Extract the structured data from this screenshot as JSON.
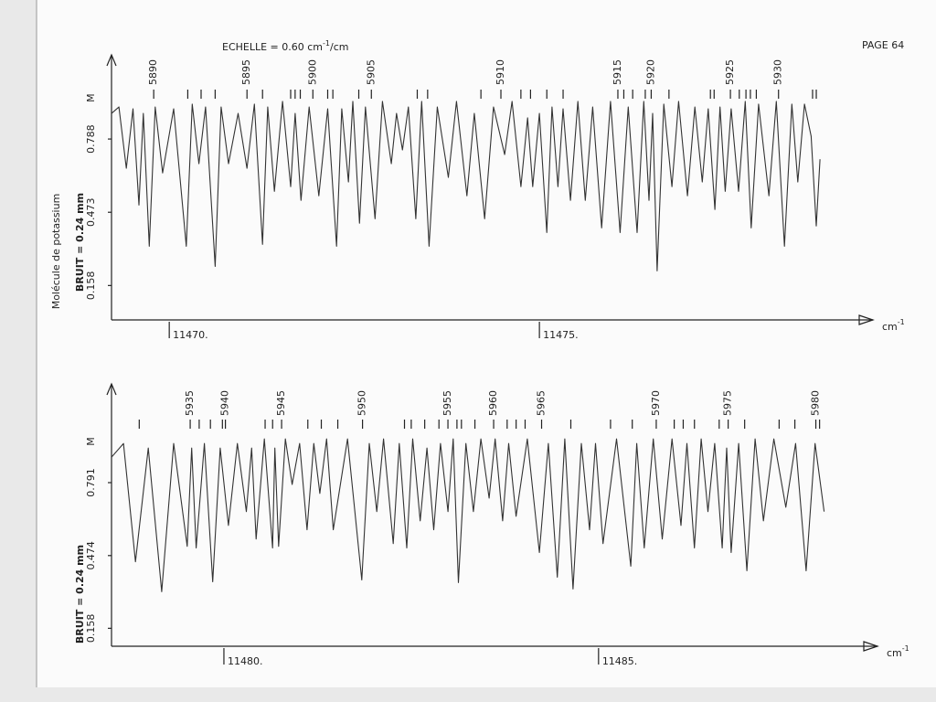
{
  "header": {
    "scale": "ECHELLE = 0.60 cm",
    "scale_sup": "-1",
    "scale_unit": "/cm",
    "page": "PAGE 64"
  },
  "side_label": "Molécule de potassium",
  "chart_data": [
    {
      "type": "line",
      "color": "#333333",
      "x": [
        11469.22,
        11469.32,
        11469.42,
        11469.51,
        11469.59,
        11469.65,
        11469.73,
        11469.81,
        11469.91,
        11470.06,
        11470.23,
        11470.31,
        11470.4,
        11470.49,
        11470.62,
        11470.7,
        11470.8,
        11470.93,
        11471.05,
        11471.15,
        11471.26,
        11471.33,
        11471.42,
        11471.53,
        11471.64,
        11471.7,
        11471.78,
        11471.89,
        11472.02,
        11472.14,
        11472.26,
        11472.33,
        11472.42,
        11472.48,
        11472.57,
        11472.65,
        11472.78,
        11472.88,
        11473.0,
        11473.07,
        11473.15,
        11473.23,
        11473.33,
        11473.41,
        11473.51,
        11473.62,
        11473.77,
        11473.88,
        11474.02,
        11474.12,
        11474.26,
        11474.38,
        11474.53,
        11474.63,
        11474.75,
        11474.84,
        11474.91,
        11475.0,
        11475.1,
        11475.17,
        11475.25,
        11475.32,
        11475.42,
        11475.52,
        11475.62,
        11475.72,
        11475.84,
        11475.96,
        11476.09,
        11476.2,
        11476.32,
        11476.41,
        11476.48,
        11476.53,
        11476.59,
        11476.68,
        11476.79,
        11476.88,
        11477.0,
        11477.1,
        11477.2,
        11477.28,
        11477.37,
        11477.44,
        11477.51,
        11477.59,
        11477.69,
        11477.78,
        11477.86,
        11477.96,
        11478.1,
        11478.2,
        11478.31,
        11478.41,
        11478.49,
        11478.58,
        11478.67,
        11478.74,
        11478.79
      ],
      "values": [
        0.898,
        0.926,
        0.662,
        0.918,
        0.504,
        0.898,
        0.327,
        0.926,
        0.642,
        0.918,
        0.327,
        0.938,
        0.682,
        0.926,
        0.24,
        0.926,
        0.682,
        0.898,
        0.662,
        0.938,
        0.335,
        0.926,
        0.563,
        0.95,
        0.583,
        0.898,
        0.524,
        0.926,
        0.544,
        0.918,
        0.327,
        0.918,
        0.603,
        0.95,
        0.426,
        0.926,
        0.445,
        0.95,
        0.682,
        0.898,
        0.741,
        0.926,
        0.445,
        0.95,
        0.327,
        0.926,
        0.623,
        0.95,
        0.544,
        0.898,
        0.445,
        0.926,
        0.721,
        0.95,
        0.583,
        0.879,
        0.583,
        0.898,
        0.386,
        0.926,
        0.583,
        0.918,
        0.524,
        0.95,
        0.524,
        0.926,
        0.406,
        0.95,
        0.386,
        0.926,
        0.386,
        0.95,
        0.524,
        0.898,
        0.221,
        0.938,
        0.583,
        0.95,
        0.544,
        0.926,
        0.603,
        0.918,
        0.485,
        0.926,
        0.563,
        0.918,
        0.563,
        0.95,
        0.406,
        0.938,
        0.544,
        0.95,
        0.327,
        0.938,
        0.603,
        0.938,
        0.8,
        0.414,
        0.701
      ],
      "xlim": [
        11469.22,
        11479.32
      ],
      "ylim": [
        0.01,
        1.15
      ],
      "xticks": [
        {
          "value": 11470,
          "label": "11470."
        },
        {
          "value": 11475,
          "label": "11475."
        }
      ],
      "yticks": [
        0.158,
        0.473,
        0.788
      ],
      "ylabel": "BRUIT = 0.24 mm",
      "ysymbol": "M",
      "xlabel": "cm",
      "xlabel_sup": "-1",
      "line_labels": [
        {
          "x": 11469.79,
          "text": "5890"
        },
        {
          "x": 11471.05,
          "text": "5895"
        },
        {
          "x": 11471.94,
          "text": "5900"
        },
        {
          "x": 11472.73,
          "text": "5905"
        },
        {
          "x": 11474.48,
          "text": "5910"
        },
        {
          "x": 11476.06,
          "text": "5915"
        },
        {
          "x": 11476.51,
          "text": "5920"
        },
        {
          "x": 11477.58,
          "text": "5925"
        },
        {
          "x": 11478.23,
          "text": "5930"
        }
      ],
      "line_marks": [
        11470.25,
        11470.43,
        11470.62,
        11471.26,
        11471.64,
        11471.7,
        11471.77,
        11472.14,
        11472.21,
        11472.56,
        11473.35,
        11473.49,
        11474.21,
        11474.75,
        11474.88,
        11475.1,
        11475.32,
        11476.14,
        11476.26,
        11476.43,
        11476.75,
        11477.31,
        11477.36,
        11477.7,
        11477.79,
        11477.85,
        11477.93,
        11478.69,
        11478.74
      ]
    },
    {
      "type": "line",
      "color": "#333333",
      "x": [
        11478.5,
        11478.66,
        11478.82,
        11478.99,
        11479.17,
        11479.33,
        11479.51,
        11479.57,
        11479.63,
        11479.74,
        11479.85,
        11479.95,
        11480.06,
        11480.18,
        11480.3,
        11480.37,
        11480.43,
        11480.54,
        11480.65,
        11480.68,
        11480.73,
        11480.82,
        11480.91,
        11481.01,
        11481.11,
        11481.2,
        11481.28,
        11481.37,
        11481.46,
        11481.65,
        11481.84,
        11481.94,
        11482.04,
        11482.13,
        11482.26,
        11482.34,
        11482.44,
        11482.52,
        11482.62,
        11482.71,
        11482.8,
        11482.89,
        11482.99,
        11483.06,
        11483.13,
        11483.23,
        11483.33,
        11483.43,
        11483.54,
        11483.62,
        11483.72,
        11483.8,
        11483.9,
        11484.05,
        11484.21,
        11484.33,
        11484.45,
        11484.55,
        11484.66,
        11484.77,
        11484.88,
        11484.96,
        11485.06,
        11485.24,
        11485.43,
        11485.51,
        11485.61,
        11485.73,
        11485.85,
        11485.98,
        11486.1,
        11486.18,
        11486.28,
        11486.37,
        11486.46,
        11486.55,
        11486.65,
        11486.71,
        11486.77,
        11486.87,
        11486.98,
        11487.09,
        11487.2,
        11487.34,
        11487.5,
        11487.63,
        11487.77,
        11487.89,
        11488.01
      ],
      "values": [
        0.902,
        0.961,
        0.447,
        0.941,
        0.317,
        0.961,
        0.514,
        0.941,
        0.507,
        0.961,
        0.36,
        0.941,
        0.605,
        0.961,
        0.665,
        0.941,
        0.546,
        0.981,
        0.507,
        0.941,
        0.514,
        0.981,
        0.783,
        0.961,
        0.586,
        0.961,
        0.744,
        0.981,
        0.586,
        0.981,
        0.368,
        0.961,
        0.665,
        0.981,
        0.526,
        0.961,
        0.507,
        0.981,
        0.625,
        0.941,
        0.586,
        0.961,
        0.665,
        0.981,
        0.357,
        0.961,
        0.665,
        0.981,
        0.724,
        0.981,
        0.625,
        0.961,
        0.645,
        0.981,
        0.487,
        0.961,
        0.38,
        0.981,
        0.329,
        0.961,
        0.586,
        0.961,
        0.526,
        0.981,
        0.428,
        0.961,
        0.507,
        0.981,
        0.546,
        0.981,
        0.605,
        0.961,
        0.507,
        0.981,
        0.665,
        0.961,
        0.507,
        0.941,
        0.487,
        0.961,
        0.408,
        0.981,
        0.625,
        0.981,
        0.684,
        0.961,
        0.408,
        0.961,
        0.665
      ],
      "xlim": [
        11478.5,
        11488.54
      ],
      "ylim": [
        0.08,
        1.22
      ],
      "xticks": [
        {
          "value": 11480,
          "label": "11480."
        },
        {
          "value": 11485,
          "label": "11485."
        }
      ],
      "yticks": [
        0.158,
        0.474,
        0.791
      ],
      "ylabel": "BRUIT = 0.24 mm",
      "ysymbol": "M",
      "xlabel": "cm",
      "xlabel_sup": "-1",
      "line_labels": [
        {
          "x": 11479.55,
          "text": "5935"
        },
        {
          "x": 11480.02,
          "text": "5940"
        },
        {
          "x": 11480.77,
          "text": "5945"
        },
        {
          "x": 11481.85,
          "text": "5950"
        },
        {
          "x": 11482.99,
          "text": "5955"
        },
        {
          "x": 11483.6,
          "text": "5960"
        },
        {
          "x": 11484.24,
          "text": "5965"
        },
        {
          "x": 11485.77,
          "text": "5970"
        },
        {
          "x": 11486.73,
          "text": "5975"
        },
        {
          "x": 11487.9,
          "text": "5980"
        }
      ],
      "line_marks": [
        11478.87,
        11479.67,
        11479.82,
        11479.98,
        11480.55,
        11480.65,
        11481.12,
        11481.3,
        11481.52,
        11482.41,
        11482.5,
        11482.68,
        11482.87,
        11483.11,
        11483.17,
        11483.35,
        11483.78,
        11483.9,
        11484.02,
        11484.63,
        11485.16,
        11485.45,
        11486.01,
        11486.13,
        11486.28,
        11486.61,
        11486.95,
        11487.41,
        11487.62,
        11487.95
      ]
    }
  ]
}
